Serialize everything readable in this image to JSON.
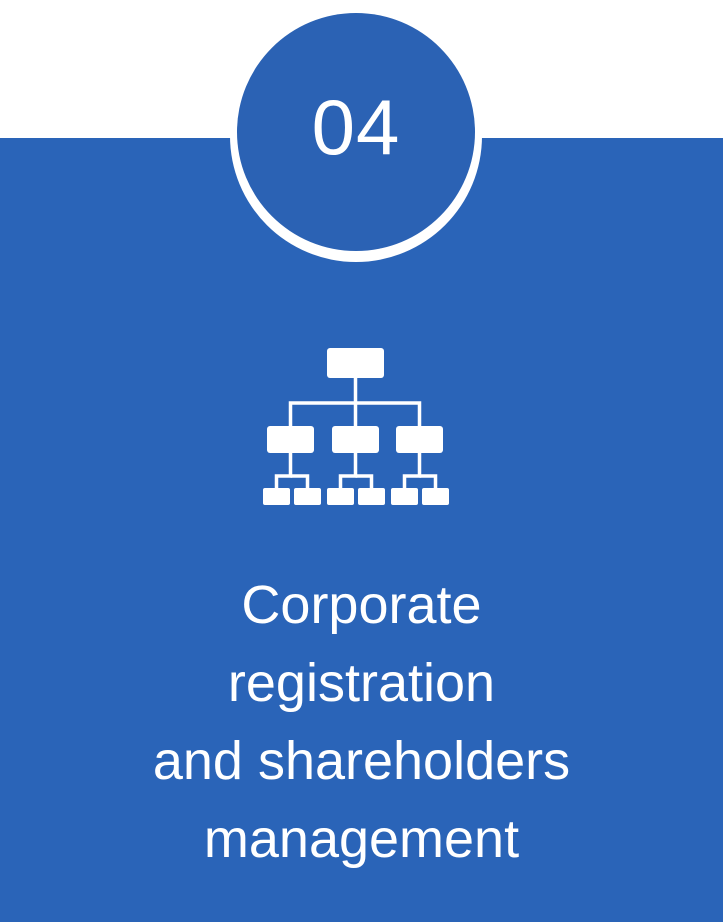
{
  "step": {
    "number": "04"
  },
  "title": {
    "line1": "Corporate",
    "line2": "registration",
    "line3": "and shareholders",
    "line4": "management"
  },
  "icon": {
    "name": "org-chart-icon"
  },
  "colors": {
    "panel": "#2a64b8",
    "circle": "#2b62b4",
    "text": "#ffffff",
    "background": "#ffffff"
  }
}
